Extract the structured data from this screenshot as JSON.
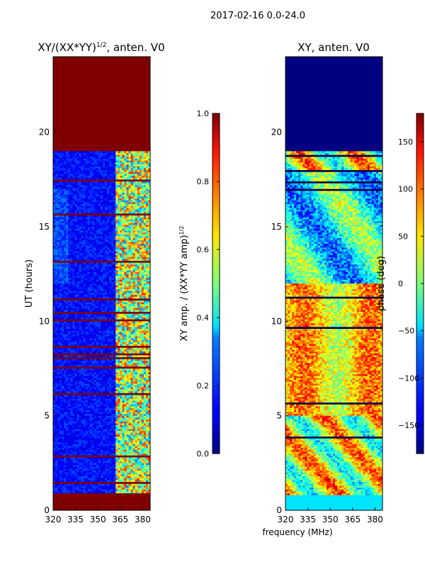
{
  "suptitle": "2017-02-16 0.0-24.0",
  "shared_xlabel": "frequency (MHz)",
  "chart_data": [
    {
      "type": "heatmap",
      "title": "XY/(XX*YY)",
      "title_exponent": "1/2",
      "title_suffix": ", anten. V0",
      "xlabel": "",
      "ylabel": "UT (hours)",
      "xlim": [
        320,
        385
      ],
      "ylim": [
        0,
        24
      ],
      "xticks": [
        320,
        335,
        350,
        365,
        380
      ],
      "yticks": [
        0,
        5,
        10,
        15,
        20
      ],
      "colormap": "jet",
      "colorbar": {
        "label": "XY amp. / (XX*YY amp)",
        "label_exponent": "1/2",
        "range": [
          0.0,
          1.0
        ],
        "ticks": [
          "0.0",
          "0.2",
          "0.4",
          "0.6",
          "0.8",
          "1.0"
        ]
      },
      "approx_regions": [
        {
          "ut": [
            0.0,
            0.8
          ],
          "value": 1.0,
          "note": "saturated/flagged"
        },
        {
          "ut": [
            0.8,
            19.0
          ],
          "freq": [
            320,
            362
          ],
          "value": 0.1,
          "note": "low amplitude"
        },
        {
          "ut": [
            0.8,
            19.0
          ],
          "freq": [
            362,
            383
          ],
          "value": 0.5,
          "note": "mixed channels"
        },
        {
          "ut": [
            19.0,
            24.0
          ],
          "value": 1.0,
          "note": "saturated/flagged"
        }
      ]
    },
    {
      "type": "heatmap",
      "title": "XY, anten. V0",
      "xlabel": "frequency (MHz)",
      "ylabel": "",
      "xlim": [
        320,
        385
      ],
      "ylim": [
        0,
        24
      ],
      "xticks": [
        320,
        335,
        350,
        365,
        380
      ],
      "yticks": [
        0,
        5,
        10,
        15,
        20
      ],
      "colormap": "jet",
      "colorbar": {
        "label": "phase (deg)",
        "range": [
          -180,
          180
        ],
        "ticks": [
          "−150",
          "−100",
          "−50",
          "0",
          "50",
          "100",
          "150"
        ]
      },
      "approx_regions": [
        {
          "ut": [
            0.0,
            0.8
          ],
          "value": -60,
          "note": "cyan band"
        },
        {
          "ut": [
            0.8,
            19.0
          ],
          "value": 40,
          "note": "mixed phase"
        },
        {
          "ut": [
            19.0,
            24.0
          ],
          "value": -180,
          "note": "flagged / dark blue"
        }
      ]
    }
  ]
}
